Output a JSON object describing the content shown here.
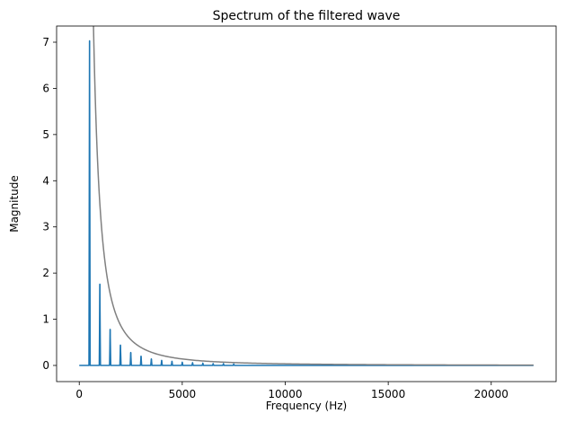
{
  "chart_data": {
    "type": "line",
    "title": "Spectrum of the filtered wave",
    "xlabel": "Frequency (Hz)",
    "ylabel": "Magnitude",
    "xlim": [
      -1100,
      23150
    ],
    "ylim": [
      -0.35,
      7.35
    ],
    "grid": false,
    "x_ticks": [
      0,
      5000,
      10000,
      15000,
      20000
    ],
    "y_ticks": [
      0,
      1,
      2,
      3,
      4,
      5,
      6,
      7
    ],
    "x_tick_labels": [
      "0",
      "5000",
      "10000",
      "15000",
      "20000"
    ],
    "y_tick_labels": [
      "0",
      "1",
      "2",
      "3",
      "4",
      "5",
      "6",
      "7"
    ],
    "series": [
      {
        "color": "#1f77b4",
        "x_range": [
          0,
          22050
        ],
        "baseline": 0,
        "fundamental_hz": 500,
        "peaks": [
          {
            "x": 500,
            "y": 7.03
          },
          {
            "x": 1000,
            "y": 1.76
          },
          {
            "x": 1500,
            "y": 0.78
          },
          {
            "x": 2000,
            "y": 0.44
          },
          {
            "x": 2500,
            "y": 0.28
          },
          {
            "x": 3000,
            "y": 0.2
          },
          {
            "x": 3500,
            "y": 0.14
          },
          {
            "x": 4000,
            "y": 0.11
          },
          {
            "x": 4500,
            "y": 0.09
          },
          {
            "x": 5000,
            "y": 0.07
          },
          {
            "x": 5500,
            "y": 0.06
          },
          {
            "x": 6000,
            "y": 0.05
          },
          {
            "x": 6500,
            "y": 0.04
          },
          {
            "x": 7000,
            "y": 0.04
          },
          {
            "x": 7500,
            "y": 0.03
          }
        ]
      },
      {
        "color": "#808080",
        "formula": "y = 3500000 / x^2",
        "x_range": [
          500,
          22050
        ]
      }
    ]
  }
}
